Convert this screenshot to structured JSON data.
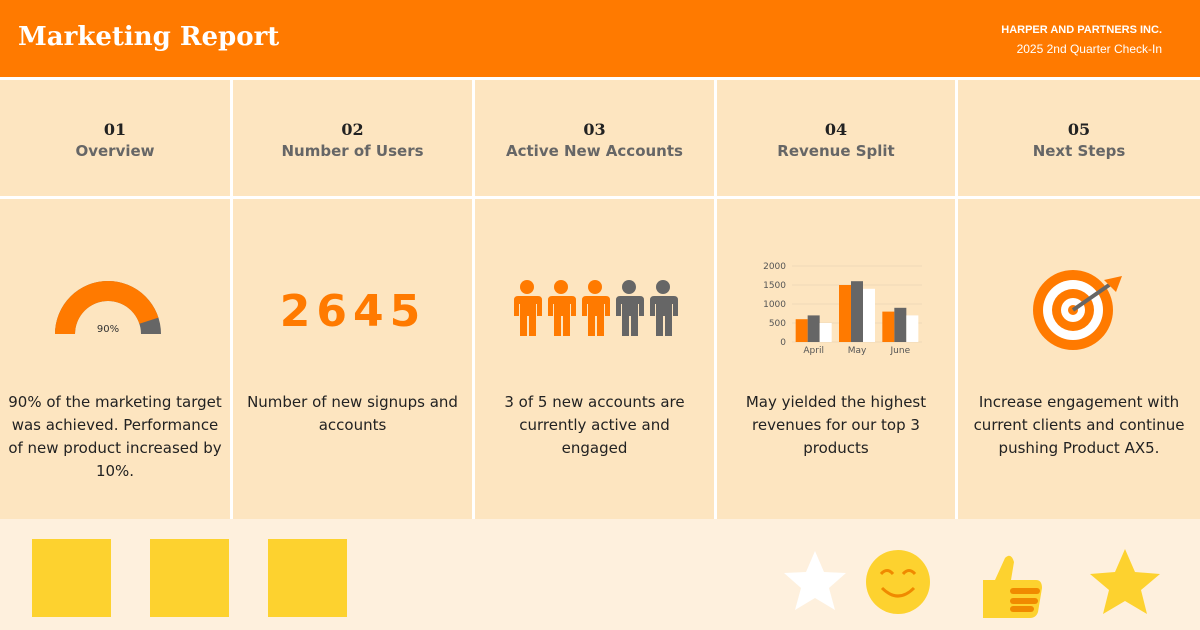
{
  "header": {
    "title": "Marketing Report",
    "company": "HARPER AND PARTNERS INC.",
    "subtitle": "2025 2nd Quarter Check-In"
  },
  "sections": [
    {
      "number": "01",
      "title": "Overview",
      "description": "90% of the marketing target was achieved. Performance of new product increased by 10%."
    },
    {
      "number": "02",
      "title": "Number of Users",
      "description": "Number of new signups and accounts"
    },
    {
      "number": "03",
      "title": "Active New Accounts",
      "description": "3 of 5 new accounts are currently active and engaged"
    },
    {
      "number": "04",
      "title": "Revenue Split",
      "description": "May yielded the highest revenues for our top 3 products"
    },
    {
      "number": "05",
      "title": "Next Steps",
      "description": "Increase engagement with current clients and continue pushing Product AX5."
    }
  ],
  "gauge": {
    "value": 90,
    "label": "90%",
    "range": [
      0,
      100
    ],
    "color": "#ff7a00",
    "track_color": "#666666"
  },
  "kpi": {
    "value": 2645
  },
  "people": {
    "total": 5,
    "active": 3,
    "active_color": "#ff7a00",
    "inactive_color": "#666666"
  },
  "revenue_chart": {
    "type": "bar",
    "categories": [
      "April",
      "May",
      "June"
    ],
    "series": [
      {
        "color": "#ff7a00",
        "values": [
          600,
          1500,
          800
        ]
      },
      {
        "color": "#666666",
        "values": [
          700,
          1600,
          900
        ]
      },
      {
        "color": "#ffffff",
        "values": [
          500,
          1400,
          700
        ]
      }
    ],
    "ylim": [
      0,
      2000
    ],
    "yticks": [
      0,
      500,
      1000,
      1500,
      2000
    ],
    "grid": true
  }
}
